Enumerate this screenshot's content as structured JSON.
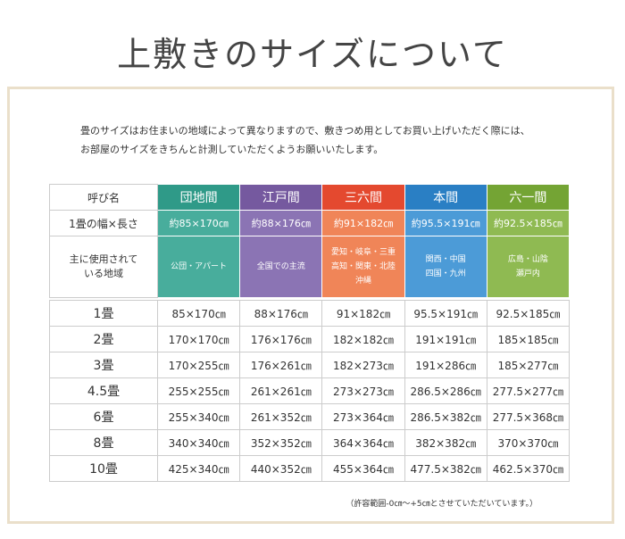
{
  "title": "上敷きのサイズについて",
  "intro": [
    "畳のサイズはお住まいの地域によって異なりますので、敷きつめ用としてお買い上げいただく際には、",
    "お部屋のサイズをきちんと計測していただくようお願いいたします。"
  ],
  "table": {
    "header": [
      "呼び名",
      "団地間",
      "江戸間",
      "三六間",
      "本間",
      "六一間"
    ],
    "size_row": [
      "1畳の幅×長さ",
      "約85×170㎝",
      "約88×176㎝",
      "約91×182㎝",
      "約95.5×191㎝",
      "約92.5×185㎝"
    ],
    "region_row": [
      [
        "主に使用されて",
        "いる地域"
      ],
      [
        "公団・アパート"
      ],
      [
        "全国での主流"
      ],
      [
        "愛知・岐阜・三重",
        "高知・関東・北陸",
        "沖縄"
      ],
      [
        "関西・中国",
        "四国・九州"
      ],
      [
        "広島・山陰",
        "瀬戸内"
      ]
    ],
    "rows": [
      [
        "1畳",
        "85×170㎝",
        "88×176㎝",
        "91×182㎝",
        "95.5×191㎝",
        "92.5×185㎝"
      ],
      [
        "2畳",
        "170×170㎝",
        "176×176㎝",
        "182×182㎝",
        "191×191㎝",
        "185×185㎝"
      ],
      [
        "3畳",
        "170×255㎝",
        "176×261㎝",
        "182×273㎝",
        "191×286㎝",
        "185×277㎝"
      ],
      [
        "4.5畳",
        "255×255㎝",
        "261×261㎝",
        "273×273㎝",
        "286.5×286㎝",
        "277.5×277㎝"
      ],
      [
        "6畳",
        "255×340㎝",
        "261×352㎝",
        "273×364㎝",
        "286.5×382㎝",
        "277.5×368㎝"
      ],
      [
        "8畳",
        "340×340㎝",
        "352×352㎝",
        "364×364㎝",
        "382×382㎝",
        "370×370㎝"
      ],
      [
        "10畳",
        "425×340㎝",
        "440×352㎝",
        "455×364㎝",
        "477.5×382㎝",
        "462.5×370㎝"
      ]
    ]
  },
  "note": "（許容範囲-0㎝～+5㎝とさせていただいています。）"
}
